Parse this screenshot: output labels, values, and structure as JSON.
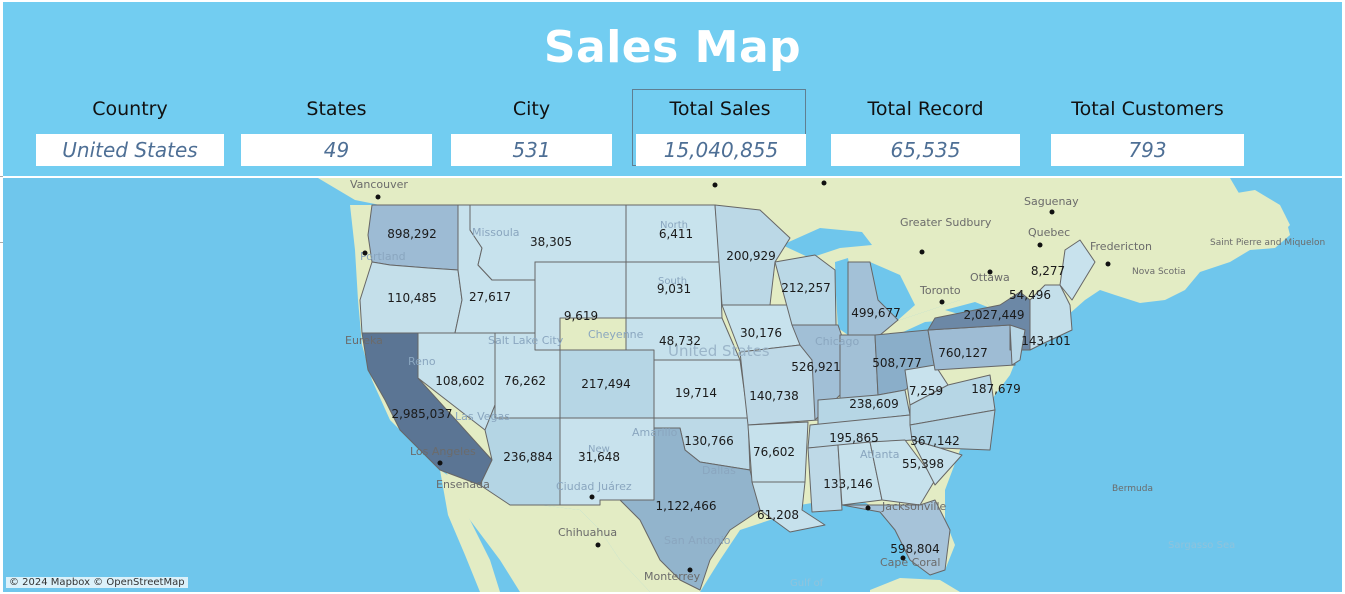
{
  "title": "Sales Map",
  "kpis": [
    {
      "label": "Country",
      "value": "United States"
    },
    {
      "label": "States",
      "value": "49"
    },
    {
      "label": "City",
      "value": "531"
    },
    {
      "label": "Total Sales",
      "value": "15,040,855"
    },
    {
      "label": "Total Record",
      "value": "65,535"
    },
    {
      "label": "Total Customers",
      "value": "793"
    }
  ],
  "map": {
    "attribution": "© 2024 Mapbox © OpenStreetMap",
    "state_sales": [
      {
        "state": "Washington",
        "value": "898,292"
      },
      {
        "state": "Oregon",
        "value": "110,485"
      },
      {
        "state": "California",
        "value": "2,985,037"
      },
      {
        "state": "Idaho",
        "value": "27,617"
      },
      {
        "state": "Nevada",
        "value": "108,602"
      },
      {
        "state": "Montana",
        "value": "38,305"
      },
      {
        "state": "Wyoming",
        "value": "9,619"
      },
      {
        "state": "Utah",
        "value": "76,262"
      },
      {
        "state": "Colorado",
        "value": "217,494"
      },
      {
        "state": "Arizona",
        "value": "236,884"
      },
      {
        "state": "New Mexico",
        "value": "31,648"
      },
      {
        "state": "North Dakota",
        "value": "6,411"
      },
      {
        "state": "South Dakota",
        "value": "9,031"
      },
      {
        "state": "Nebraska",
        "value": "48,732"
      },
      {
        "state": "Kansas",
        "value": "19,714"
      },
      {
        "state": "Oklahoma",
        "value": "130,766"
      },
      {
        "state": "Texas",
        "value": "1,122,466"
      },
      {
        "state": "Minnesota",
        "value": "200,929"
      },
      {
        "state": "Iowa",
        "value": "30,176"
      },
      {
        "state": "Missouri",
        "value": "140,738"
      },
      {
        "state": "Arkansas",
        "value": "76,602"
      },
      {
        "state": "Louisiana",
        "value": "61,208"
      },
      {
        "state": "Wisconsin",
        "value": "212,257"
      },
      {
        "state": "Illinois",
        "value": "526,921"
      },
      {
        "state": "Michigan",
        "value": "499,677"
      },
      {
        "state": "Indiana",
        "value": "508,777"
      },
      {
        "state": "Ohio",
        "value": "760,127"
      },
      {
        "state": "Kentucky",
        "value": "238,609"
      },
      {
        "state": "Tennessee",
        "value": "195,865"
      },
      {
        "state": "Mississippi",
        "value": "133,146"
      },
      {
        "state": "West Virginia",
        "value": "7,259"
      },
      {
        "state": "Virginia",
        "value": "187,679"
      },
      {
        "state": "North Carolina",
        "value": "367,142"
      },
      {
        "state": "South Carolina",
        "value": "55,398"
      },
      {
        "state": "Florida",
        "value": "598,804"
      },
      {
        "state": "New York",
        "value": "2,027,449"
      },
      {
        "state": "Vermont",
        "value": "54,496"
      },
      {
        "state": "New Hampshire",
        "value": "143,101"
      },
      {
        "state": "Maine",
        "value": "8,277"
      }
    ],
    "place_labels": [
      "Vancouver",
      "Portland",
      "Missoula",
      "Eureka",
      "Reno",
      "Salt Lake City",
      "Cheyenne",
      "Las Vegas",
      "Los Angeles",
      "Ensenada",
      "Amarillo",
      "Dallas",
      "Ciudad Juárez",
      "Chihuahua",
      "San Antonio",
      "Monterrey",
      "Chicago",
      "Atlanta",
      "Jacksonville",
      "Cape Coral",
      "Toronto",
      "Ottawa",
      "Greater Sudbury",
      "Saguenay",
      "Quebec",
      "Fredericton",
      "Nova Scotia",
      "Saint Pierre and Miquelon",
      "Bermuda",
      "Sargasso Sea",
      "Gulf of",
      "United States",
      "North",
      "South",
      "New"
    ]
  },
  "colors": {
    "header_bg": "#72cdf1",
    "ocean": "#6fc6ec",
    "land": "#e3ecc4",
    "choropleth_low": "#c6e2ee",
    "choropleth_high": "#4d6a8b"
  }
}
